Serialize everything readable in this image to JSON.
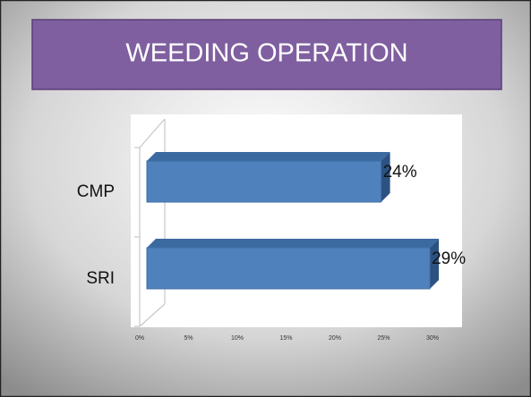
{
  "chart_data": {
    "type": "bar3d_horizontal",
    "title": "WEEDING OPERATION",
    "categories": [
      "CMP",
      "SRI"
    ],
    "values": [
      24,
      29
    ],
    "value_labels": [
      "24%",
      "29%"
    ],
    "color": "#4f81bd",
    "xlim": [
      0,
      30
    ],
    "xticks": [
      {
        "value": 0,
        "label": "0%"
      },
      {
        "value": 5,
        "label": "5%"
      },
      {
        "value": 10,
        "label": "10%"
      },
      {
        "value": 15,
        "label": "15%"
      },
      {
        "value": 20,
        "label": "20%"
      },
      {
        "value": 25,
        "label": "25%"
      },
      {
        "value": 30,
        "label": "30%"
      }
    ]
  }
}
